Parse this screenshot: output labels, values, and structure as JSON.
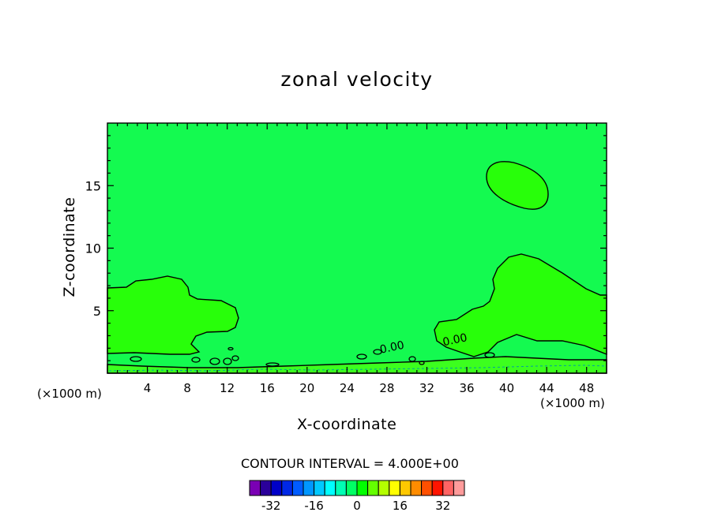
{
  "chart_data": {
    "type": "contour",
    "title": "zonal velocity",
    "xlabel": "X-coordinate",
    "ylabel": "Z-coordinate",
    "x_unit": "(×1000 m)",
    "y_unit": "(×1000 m)",
    "xlim": [
      0,
      50
    ],
    "ylim": [
      0,
      20
    ],
    "x_ticks": [
      4,
      8,
      12,
      16,
      20,
      24,
      28,
      32,
      36,
      40,
      44,
      48
    ],
    "y_ticks": [
      5,
      10,
      15
    ],
    "contour_interval_text": "CONTOUR INTERVAL = 4.000E+00",
    "contour_labels": [
      {
        "text": "0.00",
        "x": 28.5,
        "z": 2.1
      },
      {
        "text": "0.00",
        "x": 34.8,
        "z": 2.7
      }
    ],
    "colorbar": {
      "levels": [
        -36,
        -32,
        -28,
        -24,
        -20,
        -16,
        -12,
        -8,
        -4,
        0,
        4,
        8,
        12,
        16,
        20,
        24,
        28,
        32,
        36
      ],
      "tick_labels": [
        "-32",
        "-16",
        "0",
        "16",
        "32"
      ],
      "tick_values": [
        -32,
        -16,
        0,
        16,
        32
      ],
      "colors": [
        "#7a00b4",
        "#2a009a",
        "#0000c8",
        "#0028e6",
        "#005cff",
        "#0096ff",
        "#00c8ff",
        "#00ffff",
        "#00ffb4",
        "#00ff64",
        "#00ff00",
        "#64ff00",
        "#b4ff00",
        "#ffff00",
        "#ffc800",
        "#ff8c00",
        "#ff5000",
        "#ff1400",
        "#ff6464",
        "#ff9b9b"
      ]
    },
    "fill_colors": {
      "background": "#14fa50",
      "positive_region": "#28ff0a",
      "surface_band": "#3cff1e"
    }
  }
}
